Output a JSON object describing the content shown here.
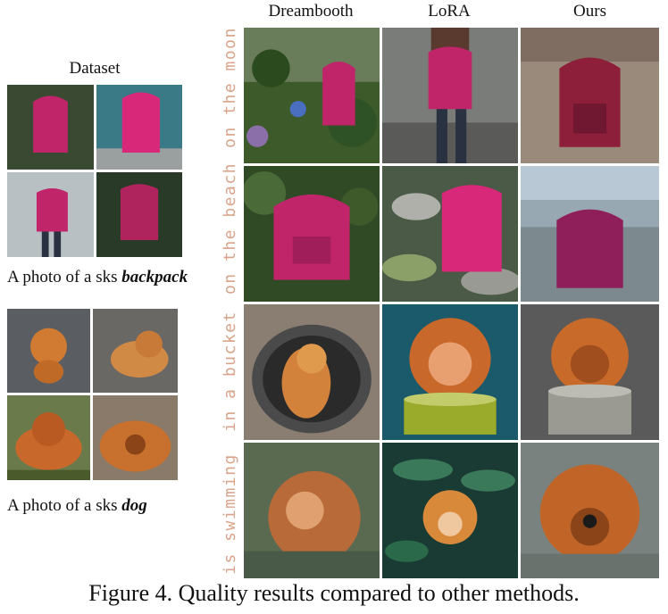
{
  "columns": [
    "Dreambooth",
    "LoRA",
    "Ours"
  ],
  "rows": [
    "on the moon",
    "on the beach",
    "in a bucket",
    "is swimming"
  ],
  "dataset": {
    "title": "Dataset",
    "backpack_caption_prefix": "A photo of a sks ",
    "backpack_caption_subject": "backpack",
    "dog_caption_prefix": "A photo of a sks ",
    "dog_caption_subject": "dog"
  },
  "caption": "Figure 4. Quality results compared to other methods.",
  "colors": {
    "row_label": "#d9a48a",
    "backpack": "#c0256a",
    "dog": "#c8682a"
  }
}
